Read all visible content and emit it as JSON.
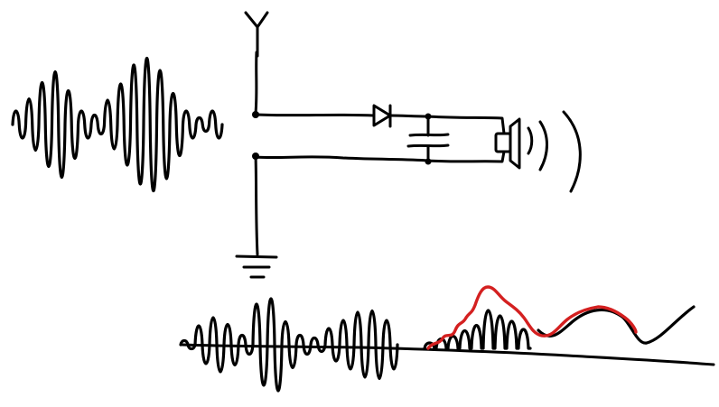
{
  "diagram": {
    "components": [
      {
        "id": "am-signal",
        "kind": "waveform",
        "label": ""
      },
      {
        "id": "antenna",
        "kind": "antenna",
        "label": ""
      },
      {
        "id": "diode",
        "kind": "diode",
        "label": ""
      },
      {
        "id": "capacitor",
        "kind": "capacitor",
        "label": ""
      },
      {
        "id": "earpiece",
        "kind": "speaker",
        "label": ""
      },
      {
        "id": "ground",
        "kind": "ground",
        "label": ""
      },
      {
        "id": "rectified-signal",
        "kind": "waveform",
        "label": ""
      },
      {
        "id": "audio-envelope",
        "kind": "waveform",
        "label": ""
      }
    ]
  },
  "colors": {
    "ink": "#000000",
    "envelope": "#d42020",
    "background": "#ffffff"
  }
}
